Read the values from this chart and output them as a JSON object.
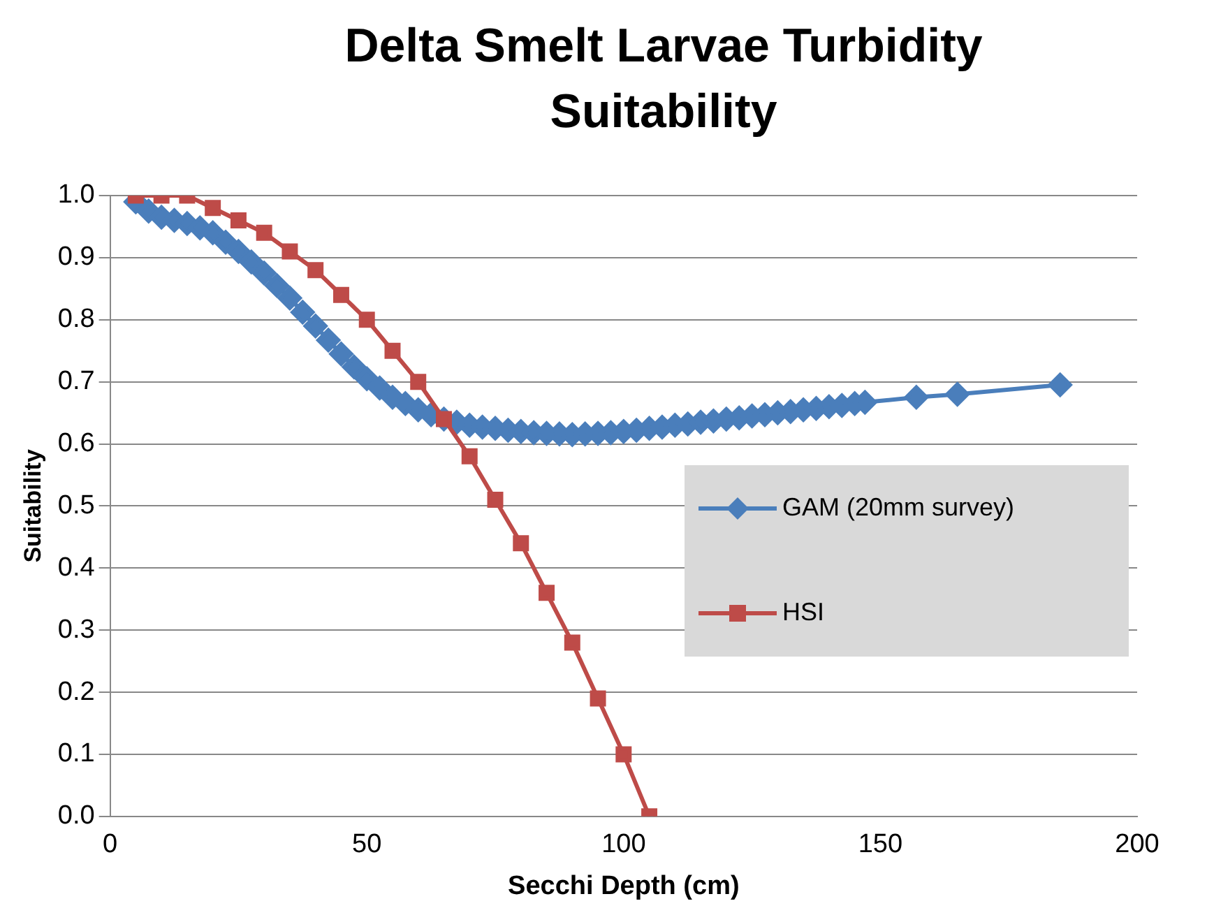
{
  "chart_data": {
    "type": "line",
    "title": "Delta Smelt Larvae Turbidity Suitability",
    "xlabel": "Secchi Depth (cm)",
    "ylabel": "Suitability",
    "xlim": [
      0,
      200
    ],
    "xticks": [
      0,
      50,
      100,
      150,
      200
    ],
    "ylim": [
      0,
      1
    ],
    "yticks": [
      {
        "value": 0,
        "label": "0.0"
      },
      {
        "value": 0.1,
        "label": "0.1"
      },
      {
        "value": 0.2,
        "label": "0.2"
      },
      {
        "value": 0.3,
        "label": "0.3"
      },
      {
        "value": 0.4,
        "label": "0.4"
      },
      {
        "value": 0.5,
        "label": "0.5"
      },
      {
        "value": 0.6,
        "label": "0.6"
      },
      {
        "value": 0.7,
        "label": "0.7"
      },
      {
        "value": 0.8,
        "label": "0.8"
      },
      {
        "value": 0.9,
        "label": "0.9"
      },
      {
        "value": 1,
        "label": "1.0"
      }
    ],
    "grid": "y",
    "legend": "right",
    "series": [
      {
        "name": "GAM (20mm survey)",
        "color": "#4a7ebb",
        "marker": "diamond",
        "x": [
          5,
          7.5,
          10,
          12.5,
          15,
          17.5,
          20,
          22.5,
          25,
          27.5,
          30,
          32.5,
          35,
          37.5,
          40,
          42.5,
          45,
          47.5,
          50,
          52.5,
          55,
          57.5,
          60,
          62.5,
          65,
          67.5,
          70,
          72.5,
          75,
          77.5,
          80,
          82.5,
          85,
          87.5,
          90,
          92.5,
          95,
          97.5,
          100,
          102.5,
          105,
          107.5,
          110,
          112.5,
          115,
          117.5,
          120,
          122.5,
          125,
          127.5,
          130,
          132.5,
          135,
          137.5,
          140,
          142.5,
          145,
          147,
          157,
          165,
          185
        ],
        "values": [
          0.99,
          0.975,
          0.965,
          0.96,
          0.955,
          0.948,
          0.94,
          0.925,
          0.91,
          0.893,
          0.875,
          0.855,
          0.835,
          0.812,
          0.79,
          0.767,
          0.745,
          0.724,
          0.705,
          0.69,
          0.675,
          0.665,
          0.655,
          0.647,
          0.64,
          0.635,
          0.63,
          0.627,
          0.625,
          0.622,
          0.62,
          0.618,
          0.617,
          0.616,
          0.615,
          0.616,
          0.617,
          0.618,
          0.62,
          0.622,
          0.625,
          0.627,
          0.63,
          0.632,
          0.635,
          0.637,
          0.64,
          0.642,
          0.645,
          0.647,
          0.65,
          0.652,
          0.655,
          0.657,
          0.66,
          0.662,
          0.665,
          0.667,
          0.675,
          0.68,
          0.695
        ]
      },
      {
        "name": "HSI",
        "color": "#be4b48",
        "marker": "square",
        "x": [
          5,
          10,
          15,
          20,
          25,
          30,
          35,
          40,
          45,
          50,
          55,
          60,
          65,
          70,
          75,
          80,
          85,
          90,
          95,
          100,
          105
        ],
        "values": [
          1,
          1,
          1,
          0.98,
          0.96,
          0.94,
          0.91,
          0.88,
          0.84,
          0.8,
          0.75,
          0.7,
          0.64,
          0.58,
          0.51,
          0.44,
          0.36,
          0.28,
          0.19,
          0.1,
          0
        ]
      }
    ]
  }
}
